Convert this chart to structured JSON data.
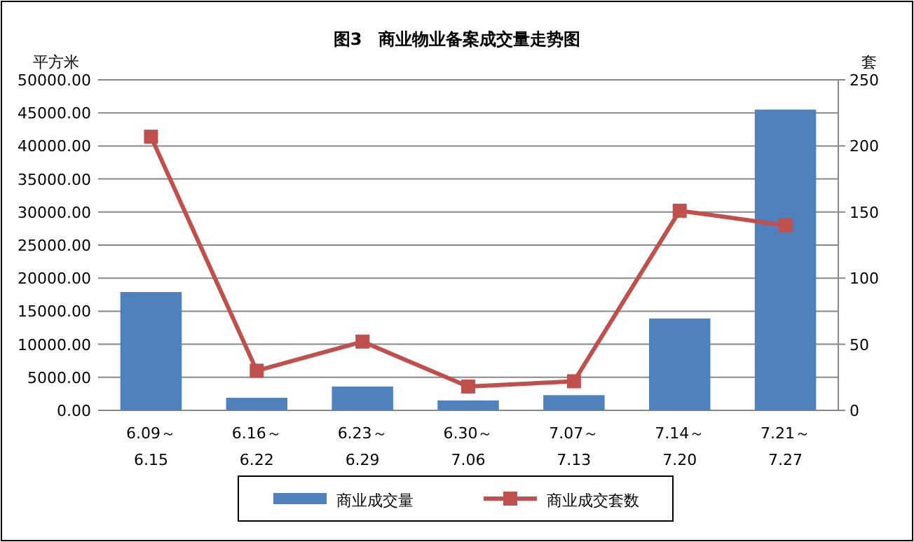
{
  "chart_data": {
    "type": "bar",
    "title": "图3　商业物业备案成交量走势图",
    "ylabel": "平方米",
    "y2label": "套",
    "categories": [
      "6.09～6.15",
      "6.16～6.22",
      "6.23～6.29",
      "6.30～7.06",
      "7.07～7.13",
      "7.14～7.20",
      "7.21～7.27"
    ],
    "series": [
      {
        "name": "商业成交量",
        "color": "#4f81bd",
        "values": [
          17900,
          1900,
          3600,
          1500,
          2300,
          13900,
          45500
        ]
      },
      {
        "name": "商业成交套数",
        "type": "line",
        "axis": "y2",
        "color": "#c0504d",
        "marker": "square",
        "values": [
          207,
          30,
          52,
          18,
          22,
          151,
          140
        ]
      }
    ],
    "ylim": [
      0,
      50000
    ],
    "yticks": [
      {
        "value": 0,
        "label": "0.00"
      },
      {
        "value": 5000,
        "label": "5000.00"
      },
      {
        "value": 10000,
        "label": "10000.00"
      },
      {
        "value": 15000,
        "label": "15000.00"
      },
      {
        "value": 20000,
        "label": "20000.00"
      },
      {
        "value": 25000,
        "label": "25000.00"
      },
      {
        "value": 30000,
        "label": "30000.00"
      },
      {
        "value": 35000,
        "label": "35000.00"
      },
      {
        "value": 40000,
        "label": "40000.00"
      },
      {
        "value": 45000,
        "label": "45000.00"
      },
      {
        "value": 50000,
        "label": "50000.00"
      }
    ],
    "y2lim": [
      0,
      250
    ],
    "y2ticks": [
      0,
      50,
      100,
      150,
      200,
      250
    ],
    "grid": "y",
    "legend": "bottom"
  }
}
